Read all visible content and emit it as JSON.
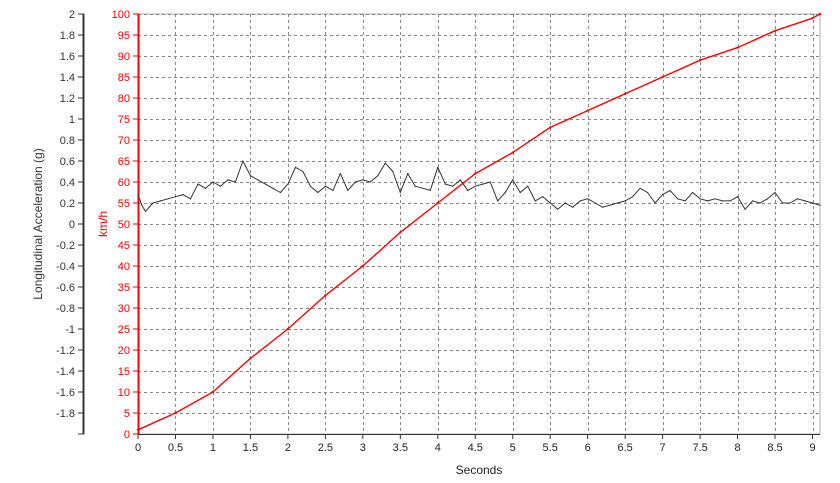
{
  "chart_data": {
    "type": "line",
    "xlabel": "Seconds",
    "y_left_label": "Longitudinal Acceleration (g)",
    "y_right_label": "km/h",
    "xlim": [
      0,
      9.1
    ],
    "x_ticks": [
      "0",
      "0.5",
      "1",
      "1.5",
      "2",
      "2.5",
      "3",
      "3.5",
      "4",
      "4.5",
      "5",
      "5.5",
      "6",
      "6.5",
      "7",
      "7.5",
      "8",
      "8.5",
      "9"
    ],
    "y_left_lim": [
      -2,
      2
    ],
    "y_left_ticks": [
      "-1.8",
      "-1.6",
      "-1.4",
      "-1.2",
      "-1",
      "-0.8",
      "-0.6",
      "-0.4",
      "-0.2",
      "0",
      "0.2",
      "0.4",
      "0.6",
      "0.8",
      "1",
      "1.2",
      "1.4",
      "1.6",
      "1.8",
      "2"
    ],
    "y_right_lim": [
      0,
      100
    ],
    "y_right_ticks": [
      "0",
      "5",
      "10",
      "15",
      "20",
      "25",
      "30",
      "35",
      "40",
      "45",
      "50",
      "55",
      "60",
      "65",
      "70",
      "75",
      "80",
      "85",
      "90",
      "95",
      "100"
    ],
    "grid": true,
    "colors": {
      "speed": "#ff0000",
      "accel": "#333333",
      "left_axis": "#333333",
      "right_axis": "#ff0000",
      "grid": "#888888"
    },
    "series": [
      {
        "axis": "right",
        "color": "#ff0000",
        "x": [
          0,
          0.5,
          1,
          1.5,
          2,
          2.5,
          3,
          3.5,
          4,
          4.5,
          5,
          5.5,
          6,
          6.5,
          7,
          7.5,
          8,
          8.5,
          9,
          9.1
        ],
        "values": [
          1,
          5,
          10,
          18,
          25,
          33,
          40,
          48,
          55,
          62,
          67,
          73,
          77,
          81,
          85,
          89,
          92,
          96,
          99,
          100
        ]
      },
      {
        "axis": "left",
        "color": "#333333",
        "x": [
          0,
          0.05,
          0.1,
          0.15,
          0.2,
          0.3,
          0.4,
          0.5,
          0.6,
          0.7,
          0.8,
          0.9,
          1.0,
          1.1,
          1.2,
          1.3,
          1.4,
          1.5,
          1.6,
          1.7,
          1.8,
          1.9,
          2.0,
          2.1,
          2.2,
          2.3,
          2.4,
          2.5,
          2.6,
          2.7,
          2.8,
          2.9,
          3.0,
          3.1,
          3.2,
          3.3,
          3.4,
          3.5,
          3.6,
          3.7,
          3.8,
          3.9,
          4.0,
          4.1,
          4.2,
          4.3,
          4.4,
          4.5,
          4.6,
          4.7,
          4.8,
          4.9,
          5.0,
          5.1,
          5.2,
          5.3,
          5.4,
          5.5,
          5.6,
          5.7,
          5.8,
          5.9,
          6.0,
          6.1,
          6.2,
          6.3,
          6.4,
          6.5,
          6.6,
          6.7,
          6.8,
          6.9,
          7.0,
          7.1,
          7.2,
          7.3,
          7.4,
          7.5,
          7.6,
          7.7,
          7.8,
          7.9,
          8.0,
          8.1,
          8.2,
          8.3,
          8.4,
          8.5,
          8.6,
          8.7,
          8.8,
          8.9,
          9.0,
          9.1
        ],
        "values": [
          0.28,
          0.18,
          0.12,
          0.16,
          0.2,
          0.22,
          0.24,
          0.26,
          0.28,
          0.24,
          0.38,
          0.34,
          0.4,
          0.36,
          0.42,
          0.4,
          0.6,
          0.46,
          0.42,
          0.38,
          0.34,
          0.3,
          0.38,
          0.54,
          0.5,
          0.36,
          0.3,
          0.36,
          0.32,
          0.48,
          0.32,
          0.4,
          0.42,
          0.4,
          0.46,
          0.58,
          0.5,
          0.3,
          0.48,
          0.36,
          0.34,
          0.32,
          0.54,
          0.38,
          0.36,
          0.42,
          0.32,
          0.36,
          0.38,
          0.4,
          0.22,
          0.3,
          0.42,
          0.3,
          0.36,
          0.22,
          0.26,
          0.2,
          0.14,
          0.2,
          0.16,
          0.22,
          0.24,
          0.2,
          0.16,
          0.18,
          0.2,
          0.22,
          0.26,
          0.34,
          0.3,
          0.2,
          0.28,
          0.32,
          0.24,
          0.22,
          0.3,
          0.24,
          0.22,
          0.24,
          0.22,
          0.22,
          0.26,
          0.14,
          0.22,
          0.2,
          0.24,
          0.3,
          0.2,
          0.2,
          0.24,
          0.22,
          0.2,
          0.18
        ]
      }
    ]
  }
}
